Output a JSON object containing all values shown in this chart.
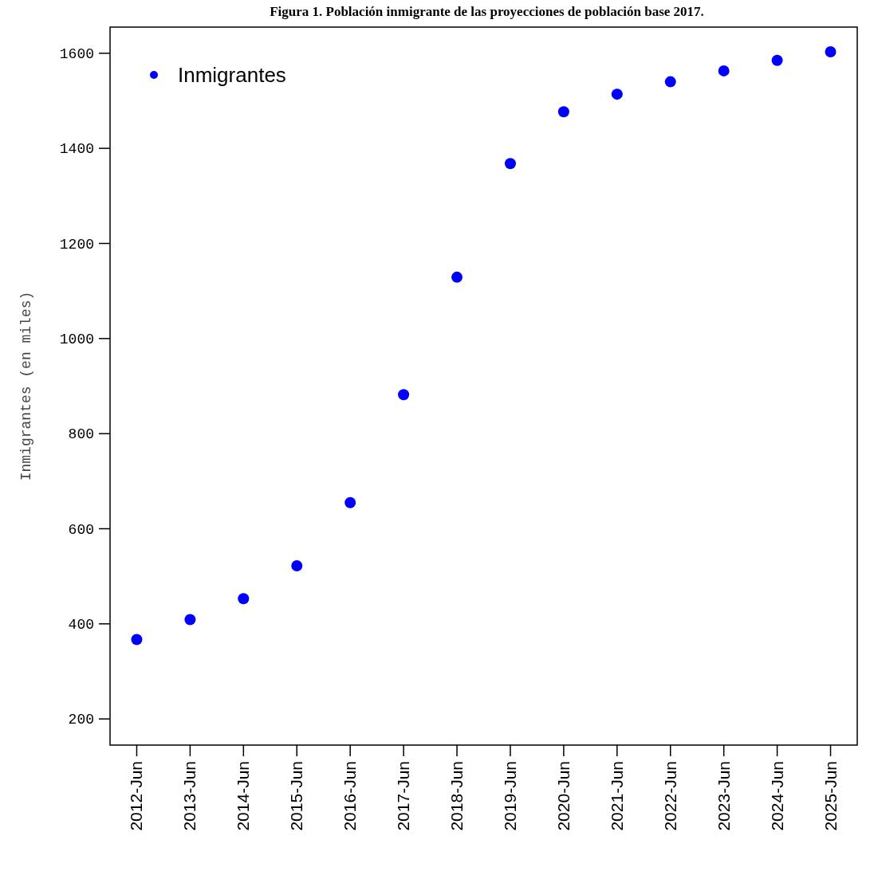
{
  "chart_data": {
    "type": "scatter",
    "title": "Figura 1. Población inmigrante de las proyecciones de población base 2017.",
    "ylabel": "Inmigrantes (en miles)",
    "categories": [
      "2012-Jun",
      "2013-Jun",
      "2014-Jun",
      "2015-Jun",
      "2016-Jun",
      "2017-Jun",
      "2018-Jun",
      "2019-Jun",
      "2020-Jun",
      "2021-Jun",
      "2022-Jun",
      "2023-Jun",
      "2024-Jun",
      "2025-Jun"
    ],
    "series": [
      {
        "name": "Inmigrantes",
        "color": "#0000ff",
        "values": [
          367,
          409,
          453,
          522,
          655,
          882,
          1129,
          1368,
          1477,
          1514,
          1540,
          1563,
          1585,
          1603
        ]
      }
    ],
    "ylim": [
      145,
      1655
    ],
    "yticks": [
      200,
      400,
      600,
      800,
      1000,
      1200,
      1400,
      1600
    ],
    "grid": false,
    "legend": "top left",
    "marker": "circle"
  }
}
